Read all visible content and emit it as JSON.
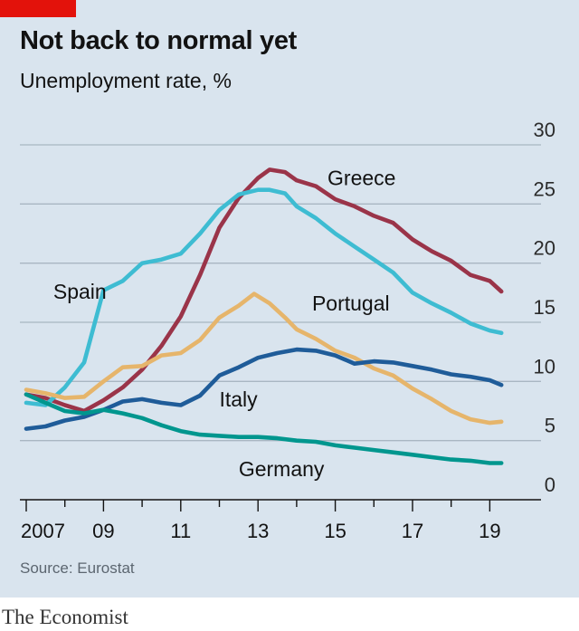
{
  "header": {
    "title": "Not back to normal yet",
    "subtitle": "Unemployment rate, %"
  },
  "footer": {
    "source": "Source: Eurostat",
    "brand": "The Economist"
  },
  "colors": {
    "background": "#d9e4ee",
    "accent_tag": "#e3120b",
    "gridline": "#a9b6c2",
    "axis": "#121212"
  },
  "chart_data": {
    "type": "line",
    "title": "Not back to normal yet",
    "ylabel": "Unemployment rate, %",
    "xlabel": "",
    "ylim": [
      0,
      30
    ],
    "xlim": [
      2007,
      2019.6
    ],
    "yticks": [
      0,
      5,
      10,
      15,
      20,
      25,
      30
    ],
    "yticks_position": "right",
    "xtick_labels": [
      {
        "x": 2007,
        "label": "2007"
      },
      {
        "x": 2009,
        "label": "09"
      },
      {
        "x": 2011,
        "label": "11"
      },
      {
        "x": 2013,
        "label": "13"
      },
      {
        "x": 2015,
        "label": "15"
      },
      {
        "x": 2017,
        "label": "17"
      },
      {
        "x": 2019,
        "label": "19"
      }
    ],
    "grid": true,
    "legend": "direct labels",
    "series": [
      {
        "name": "Greece",
        "color": "#9a3449",
        "points": [
          [
            2007.0,
            8.9
          ],
          [
            2007.5,
            8.6
          ],
          [
            2008.0,
            8.0
          ],
          [
            2008.5,
            7.5
          ],
          [
            2009.0,
            8.4
          ],
          [
            2009.5,
            9.5
          ],
          [
            2010.0,
            11.0
          ],
          [
            2010.5,
            13.0
          ],
          [
            2011.0,
            15.5
          ],
          [
            2011.5,
            19.0
          ],
          [
            2012.0,
            23.0
          ],
          [
            2012.5,
            25.5
          ],
          [
            2013.0,
            27.2
          ],
          [
            2013.3,
            27.9
          ],
          [
            2013.7,
            27.7
          ],
          [
            2014.0,
            27.0
          ],
          [
            2014.5,
            26.5
          ],
          [
            2015.0,
            25.4
          ],
          [
            2015.5,
            24.8
          ],
          [
            2016.0,
            24.0
          ],
          [
            2016.5,
            23.4
          ],
          [
            2017.0,
            22.0
          ],
          [
            2017.5,
            21.0
          ],
          [
            2018.0,
            20.2
          ],
          [
            2018.5,
            19.0
          ],
          [
            2019.0,
            18.5
          ],
          [
            2019.3,
            17.6
          ]
        ],
        "label_anchor": [
          2014.8,
          26.6
        ]
      },
      {
        "name": "Spain",
        "color": "#3ebcd2",
        "points": [
          [
            2007.0,
            8.2
          ],
          [
            2007.5,
            8.0
          ],
          [
            2008.0,
            9.5
          ],
          [
            2008.5,
            11.6
          ],
          [
            2009.0,
            17.7
          ],
          [
            2009.5,
            18.5
          ],
          [
            2010.0,
            20.0
          ],
          [
            2010.5,
            20.3
          ],
          [
            2011.0,
            20.8
          ],
          [
            2011.5,
            22.5
          ],
          [
            2012.0,
            24.5
          ],
          [
            2012.5,
            25.8
          ],
          [
            2013.0,
            26.2
          ],
          [
            2013.3,
            26.2
          ],
          [
            2013.7,
            25.9
          ],
          [
            2014.0,
            24.8
          ],
          [
            2014.5,
            23.8
          ],
          [
            2015.0,
            22.5
          ],
          [
            2015.5,
            21.4
          ],
          [
            2016.0,
            20.3
          ],
          [
            2016.5,
            19.2
          ],
          [
            2017.0,
            17.5
          ],
          [
            2017.5,
            16.6
          ],
          [
            2018.0,
            15.8
          ],
          [
            2018.5,
            14.9
          ],
          [
            2019.0,
            14.3
          ],
          [
            2019.3,
            14.1
          ]
        ],
        "label_anchor": [
          2007.7,
          17.0
        ]
      },
      {
        "name": "Portugal",
        "color": "#e6b56b",
        "points": [
          [
            2007.0,
            9.3
          ],
          [
            2007.5,
            9.0
          ],
          [
            2008.0,
            8.6
          ],
          [
            2008.5,
            8.7
          ],
          [
            2009.0,
            10.0
          ],
          [
            2009.5,
            11.2
          ],
          [
            2010.0,
            11.3
          ],
          [
            2010.5,
            12.2
          ],
          [
            2011.0,
            12.4
          ],
          [
            2011.5,
            13.5
          ],
          [
            2012.0,
            15.4
          ],
          [
            2012.5,
            16.4
          ],
          [
            2012.9,
            17.4
          ],
          [
            2013.3,
            16.6
          ],
          [
            2013.7,
            15.4
          ],
          [
            2014.0,
            14.4
          ],
          [
            2014.5,
            13.6
          ],
          [
            2015.0,
            12.6
          ],
          [
            2015.5,
            12.0
          ],
          [
            2016.0,
            11.1
          ],
          [
            2016.5,
            10.5
          ],
          [
            2017.0,
            9.4
          ],
          [
            2017.5,
            8.5
          ],
          [
            2018.0,
            7.5
          ],
          [
            2018.5,
            6.8
          ],
          [
            2019.0,
            6.5
          ],
          [
            2019.3,
            6.6
          ]
        ],
        "label_anchor": [
          2014.4,
          16.0
        ]
      },
      {
        "name": "Italy",
        "color": "#1f5c99",
        "points": [
          [
            2007.0,
            6.0
          ],
          [
            2007.5,
            6.2
          ],
          [
            2008.0,
            6.7
          ],
          [
            2008.5,
            7.0
          ],
          [
            2009.0,
            7.6
          ],
          [
            2009.5,
            8.3
          ],
          [
            2010.0,
            8.5
          ],
          [
            2010.5,
            8.2
          ],
          [
            2011.0,
            8.0
          ],
          [
            2011.5,
            8.8
          ],
          [
            2012.0,
            10.5
          ],
          [
            2012.5,
            11.2
          ],
          [
            2013.0,
            12.0
          ],
          [
            2013.5,
            12.4
          ],
          [
            2014.0,
            12.7
          ],
          [
            2014.5,
            12.6
          ],
          [
            2015.0,
            12.2
          ],
          [
            2015.5,
            11.5
          ],
          [
            2016.0,
            11.7
          ],
          [
            2016.5,
            11.6
          ],
          [
            2017.0,
            11.3
          ],
          [
            2017.5,
            11.0
          ],
          [
            2018.0,
            10.6
          ],
          [
            2018.5,
            10.4
          ],
          [
            2019.0,
            10.1
          ],
          [
            2019.3,
            9.7
          ]
        ],
        "label_anchor": [
          2012.0,
          7.9
        ]
      },
      {
        "name": "Germany",
        "color": "#00968e",
        "points": [
          [
            2007.0,
            8.9
          ],
          [
            2007.5,
            8.2
          ],
          [
            2008.0,
            7.5
          ],
          [
            2008.5,
            7.3
          ],
          [
            2009.0,
            7.6
          ],
          [
            2009.5,
            7.3
          ],
          [
            2010.0,
            6.9
          ],
          [
            2010.5,
            6.3
          ],
          [
            2011.0,
            5.8
          ],
          [
            2011.5,
            5.5
          ],
          [
            2012.0,
            5.4
          ],
          [
            2012.5,
            5.3
          ],
          [
            2013.0,
            5.3
          ],
          [
            2013.5,
            5.2
          ],
          [
            2014.0,
            5.0
          ],
          [
            2014.5,
            4.9
          ],
          [
            2015.0,
            4.6
          ],
          [
            2015.5,
            4.4
          ],
          [
            2016.0,
            4.2
          ],
          [
            2016.5,
            4.0
          ],
          [
            2017.0,
            3.8
          ],
          [
            2017.5,
            3.6
          ],
          [
            2018.0,
            3.4
          ],
          [
            2018.5,
            3.3
          ],
          [
            2019.0,
            3.1
          ],
          [
            2019.3,
            3.1
          ]
        ],
        "label_anchor": [
          2012.5,
          2.0
        ]
      }
    ]
  }
}
